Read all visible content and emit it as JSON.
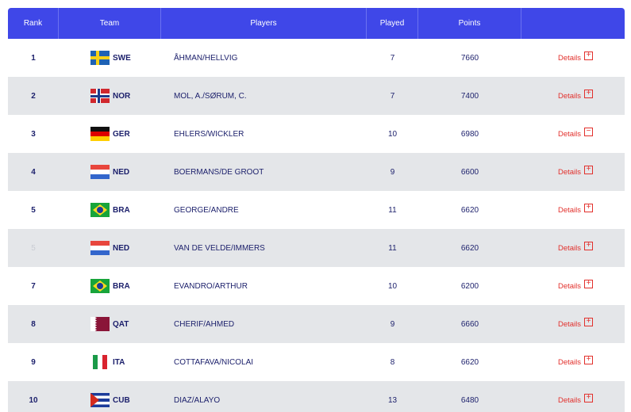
{
  "table": {
    "headers": {
      "rank": "Rank",
      "team": "Team",
      "players": "Players",
      "played": "Played",
      "points": "Points",
      "details": ""
    },
    "rows": [
      {
        "rank": "1",
        "flag": "swe",
        "team": "SWE",
        "players": "ÅHMAN/HELLVIG",
        "played": "7",
        "points": "7660",
        "details": "Details",
        "toggle": "+"
      },
      {
        "rank": "2",
        "flag": "nor",
        "team": "NOR",
        "players": "MOL, A./SØRUM, C.",
        "played": "7",
        "points": "7400",
        "details": "Details",
        "toggle": "+"
      },
      {
        "rank": "3",
        "flag": "ger",
        "team": "GER",
        "players": "EHLERS/WICKLER",
        "played": "10",
        "points": "6980",
        "details": "Details",
        "toggle": "−"
      },
      {
        "rank": "4",
        "flag": "ned",
        "team": "NED",
        "players": "BOERMANS/DE GROOT",
        "played": "9",
        "points": "6600",
        "details": "Details",
        "toggle": "+"
      },
      {
        "rank": "5",
        "flag": "bra",
        "team": "BRA",
        "players": "GEORGE/ANDRE",
        "played": "11",
        "points": "6620",
        "details": "Details",
        "toggle": "+"
      },
      {
        "rank": "5",
        "flag": "ned",
        "team": "NED",
        "players": "VAN DE VELDE/IMMERS",
        "played": "11",
        "points": "6620",
        "details": "Details",
        "toggle": "+"
      },
      {
        "rank": "7",
        "flag": "bra",
        "team": "BRA",
        "players": "EVANDRO/ARTHUR",
        "played": "10",
        "points": "6200",
        "details": "Details",
        "toggle": "+"
      },
      {
        "rank": "8",
        "flag": "qat",
        "team": "QAT",
        "players": "CHERIF/AHMED",
        "played": "9",
        "points": "6660",
        "details": "Details",
        "toggle": "+"
      },
      {
        "rank": "9",
        "flag": "ita",
        "team": "ITA",
        "players": "COTTAFAVA/NICOLAI",
        "played": "8",
        "points": "6620",
        "details": "Details",
        "toggle": "+"
      },
      {
        "rank": "10",
        "flag": "cub",
        "team": "CUB",
        "players": "DIAZ/ALAYO",
        "played": "13",
        "points": "6480",
        "details": "Details",
        "toggle": "+"
      }
    ]
  },
  "colors": {
    "header_bg": "#3f47e8",
    "row_alt_bg": "#e4e6e9",
    "text": "#1b1f6b",
    "details_link": "#e2302c"
  }
}
